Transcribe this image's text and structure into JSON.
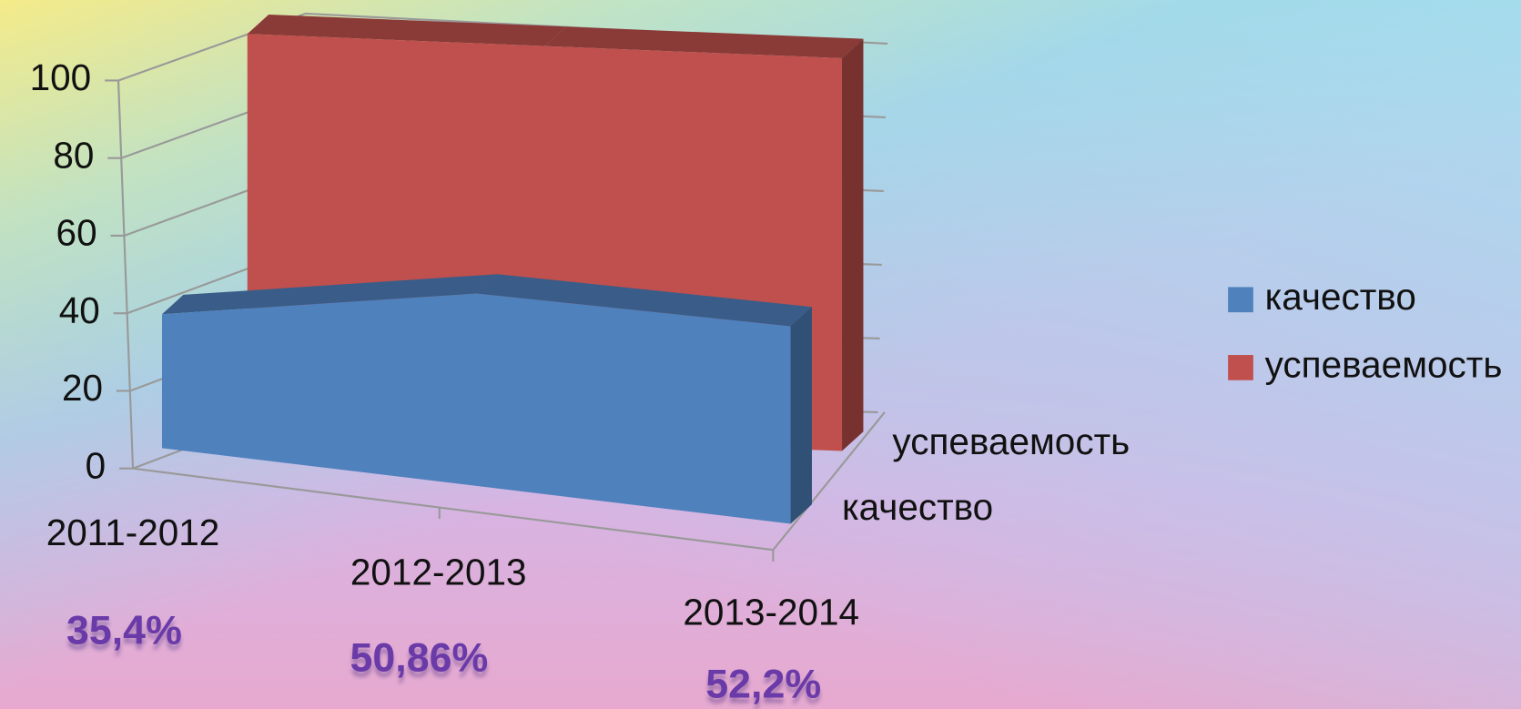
{
  "chart_data": {
    "type": "area3d",
    "categories": [
      "2011-2012",
      "2012-2013",
      "2013-2014"
    ],
    "series": [
      {
        "name": "качество",
        "color": "#4f81bd",
        "values": [
          35.4,
          50.86,
          52.2
        ],
        "value_labels": [
          "35,4%",
          "50,86%",
          "52,2%"
        ]
      },
      {
        "name": "успеваемость",
        "color": "#c0504d",
        "values": [
          100,
          100,
          100
        ]
      }
    ],
    "ylim": [
      0,
      100
    ],
    "yticks": [
      0,
      20,
      40,
      60,
      80,
      100
    ],
    "grid": true,
    "legend": "right"
  }
}
